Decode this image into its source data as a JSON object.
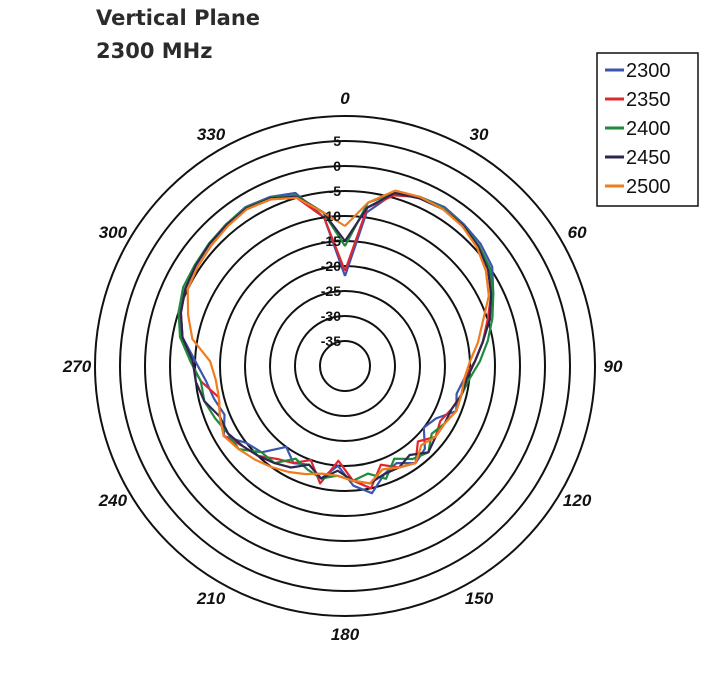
{
  "header": {
    "title_line1": "Vertical Plane",
    "title_line2": "2300 MHz"
  },
  "chart_data": {
    "type": "polar-line",
    "title": "Vertical Plane 2300 MHz",
    "radial_ticks": [
      5,
      0,
      -5,
      -10,
      -15,
      -20,
      -25,
      -30,
      -35
    ],
    "r_range": [
      -40,
      10
    ],
    "angle_labels": [
      0,
      30,
      60,
      90,
      120,
      150,
      180,
      210,
      240,
      270,
      300,
      330
    ],
    "angle_direction": "clockwise",
    "angle_zero": "top",
    "legend_position": "top-right",
    "angles": [
      0,
      8,
      16,
      24,
      32,
      40,
      48,
      56,
      64,
      72,
      80,
      88,
      96,
      104,
      112,
      120,
      128,
      136,
      144,
      152,
      160,
      168,
      176,
      184,
      192,
      200,
      208,
      216,
      224,
      232,
      240,
      248,
      256,
      264,
      272,
      280,
      288,
      296,
      304,
      312,
      320,
      328,
      336,
      344,
      352
    ],
    "series": [
      {
        "name": "2300",
        "color": "#3b55b0",
        "values": [
          -22,
          -9,
          -4,
          -3,
          -2.5,
          -3,
          -3.5,
          -4.5,
          -7,
          -10,
          -12,
          -14,
          -16,
          -17,
          -16,
          -19,
          -20,
          -17,
          -16,
          -18,
          -17,
          -14,
          -16,
          -20,
          -17,
          -19,
          -18,
          -20,
          -16,
          -15,
          -12,
          -14,
          -13,
          -12,
          -10,
          -7,
          -5,
          -4.5,
          -4,
          -3.5,
          -3,
          -2.5,
          -3,
          -4,
          -10
        ]
      },
      {
        "name": "2350",
        "color": "#e0262e",
        "values": [
          -21,
          -8,
          -4.5,
          -3,
          -3,
          -3.5,
          -4,
          -5,
          -7.5,
          -10,
          -12,
          -14,
          -16,
          -16,
          -17,
          -18,
          -17,
          -19,
          -16,
          -17,
          -19,
          -15,
          -17,
          -21,
          -16,
          -20,
          -18,
          -17,
          -15,
          -14,
          -12,
          -13,
          -14,
          -11,
          -9,
          -7,
          -5.5,
          -4.5,
          -4,
          -3.5,
          -3,
          -3,
          -3.5,
          -5,
          -10
        ]
      },
      {
        "name": "2400",
        "color": "#1f8a3c",
        "values": [
          -16,
          -7,
          -4,
          -3,
          -2.8,
          -3.2,
          -4,
          -5,
          -7,
          -9,
          -11,
          -13,
          -15,
          -16,
          -16,
          -17,
          -18,
          -16,
          -17,
          -19,
          -16,
          -18,
          -17,
          -18,
          -17,
          -18,
          -19,
          -16,
          -16,
          -13,
          -13,
          -12,
          -11,
          -11,
          -9,
          -6.5,
          -5,
          -4,
          -3.8,
          -3.4,
          -3,
          -2.6,
          -3.2,
          -4.5,
          -9
        ]
      },
      {
        "name": "2450",
        "color": "#2f2650",
        "values": [
          -15,
          -8,
          -4,
          -3.3,
          -3,
          -3.3,
          -4.2,
          -5.5,
          -7.5,
          -9.5,
          -12,
          -14,
          -15.5,
          -16,
          -17,
          -17,
          -17,
          -16,
          -18,
          -17,
          -17,
          -16,
          -17,
          -19,
          -17,
          -19,
          -17,
          -16,
          -15,
          -14,
          -13,
          -13,
          -11,
          -10,
          -9.5,
          -7,
          -5.5,
          -4.5,
          -4,
          -3.5,
          -3.2,
          -2.8,
          -3.3,
          -4.8,
          -9
        ]
      },
      {
        "name": "2500",
        "color": "#f07c1e",
        "values": [
          -12,
          -7,
          -3.5,
          -3,
          -3,
          -3.5,
          -4.5,
          -6,
          -8,
          -11,
          -13,
          -15,
          -16,
          -16,
          -16,
          -17,
          -17,
          -18,
          -16,
          -17,
          -18,
          -16,
          -17,
          -18,
          -18,
          -17,
          -16,
          -15,
          -14,
          -13,
          -12,
          -13,
          -14,
          -14,
          -13,
          -9,
          -7,
          -5,
          -4.5,
          -4,
          -3.5,
          -3,
          -3.5,
          -5,
          -9
        ]
      }
    ]
  }
}
